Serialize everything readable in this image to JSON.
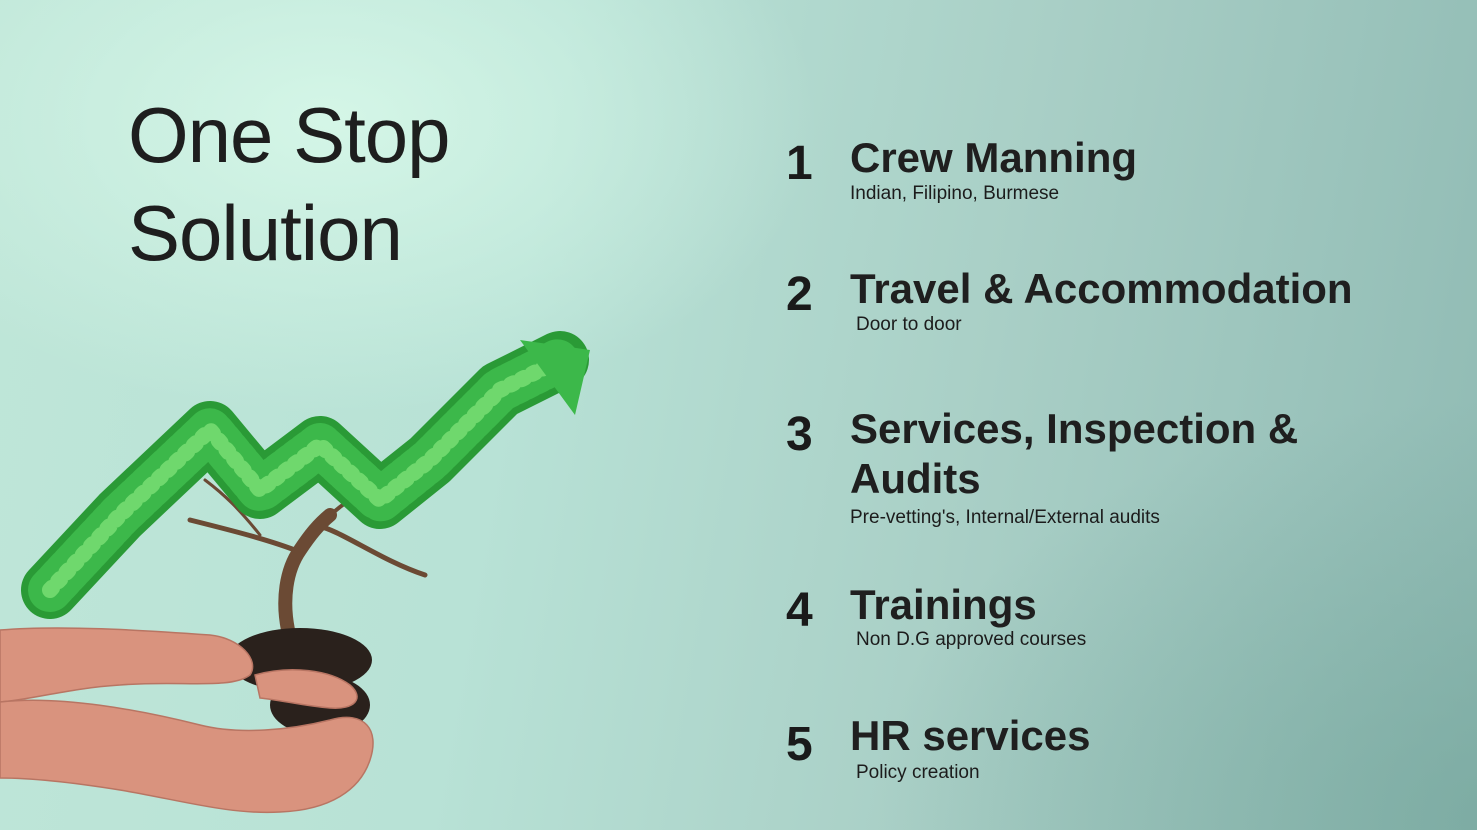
{
  "title": {
    "line1": "One Stop",
    "line2": "Solution"
  },
  "services": [
    {
      "number": "1",
      "heading": "Crew Manning",
      "detail": "Indian, Filipino, Burmese"
    },
    {
      "number": "2",
      "heading": "Travel & Accommodation",
      "detail": "Door to door"
    },
    {
      "number": "3",
      "heading": "Services, Inspection & Audits",
      "detail": "Pre-vetting's, Internal/External audits"
    },
    {
      "number": "4",
      "heading": "Trainings",
      "detail": "Non D.G approved courses"
    },
    {
      "number": "5",
      "heading": "HR services",
      "detail": "Policy creation"
    }
  ],
  "colors": {
    "leaf": "#3cb84a",
    "leaf_dark": "#2a9a36",
    "skin": "#d9937e",
    "bark": "#6b4a34",
    "text": "#1e1e1e"
  },
  "illustration": {
    "icon": "growth-plant-in-hands-icon"
  }
}
